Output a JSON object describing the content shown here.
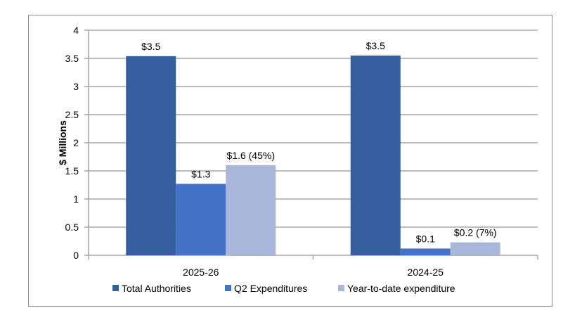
{
  "chart_data": {
    "type": "bar",
    "title": "",
    "xlabel": "",
    "ylabel": "$ Millions",
    "ylim": [
      0,
      4
    ],
    "yticks": [
      "0",
      "0.5",
      "1",
      "1.5",
      "2",
      "2.5",
      "3",
      "3.5",
      "4"
    ],
    "grid": true,
    "legend_position": "bottom",
    "categories": [
      "2025-26",
      "2024-25"
    ],
    "series": [
      {
        "name": "Total Authorities",
        "color": "#355E9F",
        "values": [
          3.54,
          3.55
        ],
        "labels": [
          "$3.5",
          "$3.5"
        ]
      },
      {
        "name": "Q2 Expenditures",
        "color": "#4472C4",
        "values": [
          1.27,
          0.12
        ],
        "labels": [
          "$1.3",
          "$0.1"
        ]
      },
      {
        "name": "Year-to-date expenditure",
        "color": "#A8B6DB",
        "values": [
          1.6,
          0.23
        ],
        "labels": [
          "$1.6 (45%)",
          "$0.2 (7%)"
        ]
      }
    ]
  }
}
